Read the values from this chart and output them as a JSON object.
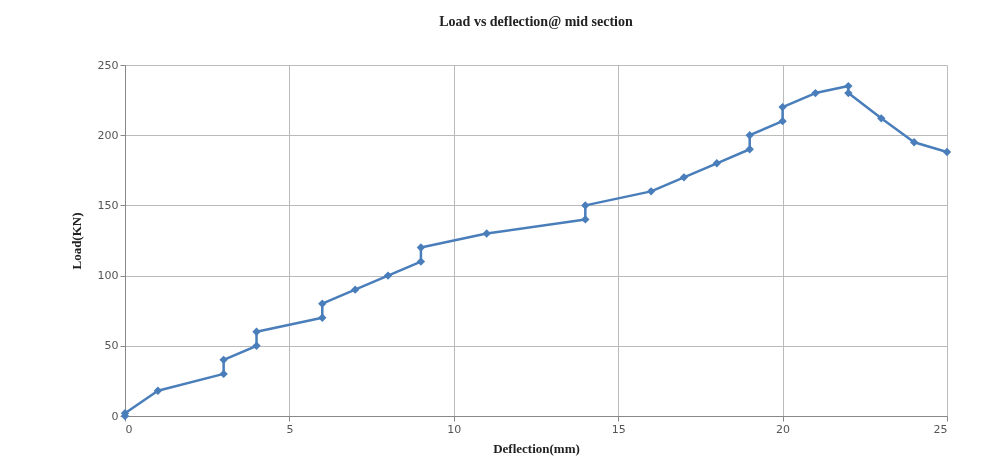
{
  "chart_data": {
    "type": "line",
    "title": "Load vs deflection@ mid section",
    "xlabel": "Deflection(mm)",
    "ylabel": "Load(KN)",
    "x": [
      0,
      0,
      1,
      3,
      3,
      4,
      4,
      6,
      6,
      7,
      8,
      9,
      9,
      11,
      14,
      14,
      16,
      17,
      18,
      19,
      19,
      20,
      20,
      21,
      22,
      22,
      23,
      24,
      25
    ],
    "series": [
      {
        "color": "#4a7ebb",
        "values": [
          0,
          2,
          18,
          30,
          40,
          50,
          60,
          70,
          80,
          90,
          100,
          110,
          120,
          130,
          140,
          150,
          160,
          170,
          180,
          190,
          200,
          210,
          220,
          230,
          235,
          230,
          212,
          195,
          188
        ]
      }
    ],
    "xlim": [
      0,
      25
    ],
    "xticks": [
      0,
      5,
      10,
      15,
      20,
      25
    ],
    "ylim": [
      0,
      250
    ],
    "yticks": [
      0,
      50,
      100,
      150,
      200,
      250
    ],
    "grid": true,
    "marker": "diamond",
    "line_style": "solid"
  }
}
